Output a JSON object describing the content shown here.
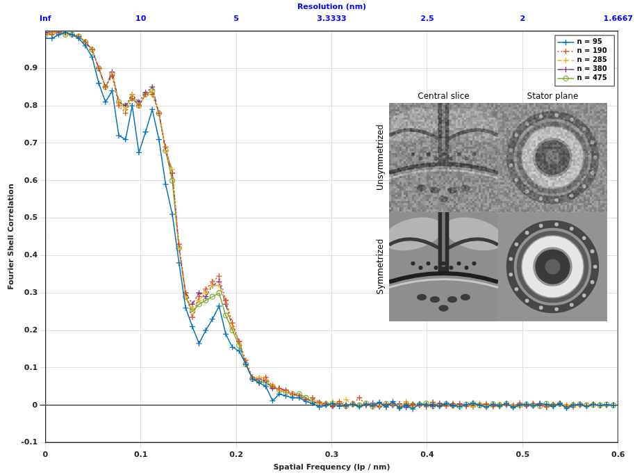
{
  "chart_data": {
    "type": "line",
    "x_label": "Spatial Frequency (lp / nm)",
    "y_label": "Fourier Shell Correlation",
    "x2_label": "Resolution (nm)",
    "xlim": [
      0,
      0.6
    ],
    "xticks": [
      0,
      0.1,
      0.2,
      0.3,
      0.4,
      0.5,
      0.6
    ],
    "x2lim": [
      0,
      0.6
    ],
    "x2ticks": [
      {
        "value": 0,
        "label": "Inf"
      },
      {
        "value": 0.1,
        "label": "10"
      },
      {
        "value": 0.2,
        "label": "5"
      },
      {
        "value": 0.3,
        "label": "3.3333"
      },
      {
        "value": 0.4,
        "label": "2.5"
      },
      {
        "value": 0.5,
        "label": "2"
      },
      {
        "value": 0.6,
        "label": "1.6667"
      }
    ],
    "ylim": [
      -0.1,
      1
    ],
    "yticks": [
      -0.1,
      0,
      0.1,
      0.2,
      0.3,
      0.4,
      0.5,
      0.6,
      0.7,
      0.8,
      0.9
    ],
    "grid": true,
    "legend": "upper right",
    "inset": {
      "columns": [
        "Central slice",
        "Stator plane"
      ],
      "rows": [
        "Unsymmetrized",
        "Symmetrized"
      ]
    },
    "x": [
      0,
      0.007,
      0.014,
      0.021,
      0.028,
      0.035,
      0.042,
      0.049,
      0.056,
      0.063,
      0.07,
      0.077,
      0.084,
      0.091,
      0.098,
      0.105,
      0.112,
      0.119,
      0.126,
      0.133,
      0.14,
      0.147,
      0.154,
      0.161,
      0.168,
      0.175,
      0.182,
      0.189,
      0.196,
      0.203,
      0.21,
      0.217,
      0.224,
      0.231,
      0.238,
      0.245,
      0.252,
      0.259,
      0.266,
      0.273,
      0.28,
      0.287,
      0.294,
      0.301,
      0.308,
      0.315,
      0.322,
      0.329,
      0.336,
      0.343,
      0.35,
      0.357,
      0.364,
      0.371,
      0.378,
      0.385,
      0.392,
      0.399,
      0.406,
      0.413,
      0.42,
      0.427,
      0.434,
      0.441,
      0.448,
      0.455,
      0.462,
      0.469,
      0.476,
      0.483,
      0.49,
      0.497,
      0.504,
      0.511,
      0.518,
      0.525,
      0.532,
      0.539,
      0.546,
      0.553,
      0.56,
      0.567,
      0.574,
      0.581,
      0.588,
      0.595
    ],
    "series": [
      {
        "name": "n = 95",
        "color": "#0072BD",
        "marker": "plus",
        "line_style": "solid",
        "values": [
          0.98,
          0.98,
          0.99,
          0.995,
          0.99,
          0.98,
          0.96,
          0.93,
          0.86,
          0.81,
          0.84,
          0.72,
          0.71,
          0.8,
          0.675,
          0.73,
          0.79,
          0.71,
          0.59,
          0.51,
          0.38,
          0.26,
          0.21,
          0.165,
          0.2,
          0.23,
          0.265,
          0.19,
          0.155,
          0.145,
          0.11,
          0.07,
          0.06,
          0.05,
          0.012,
          0.03,
          0.025,
          0.02,
          0.02,
          0.01,
          0.005,
          -0.005,
          0.0,
          0.005,
          -0.003,
          0.0,
          0.002,
          -0.004,
          0.003,
          0.0,
          0.008,
          -0.005,
          0.01,
          -0.008,
          0.0,
          -0.01,
          0.004,
          0.0,
          0.002,
          -0.003,
          0.005,
          0.0,
          -0.004,
          0.002,
          0.006,
          0.0,
          -0.005,
          0.003,
          -0.002,
          0.004,
          -0.006,
          0.0,
          0.003,
          -0.002,
          0.005,
          0.002,
          -0.003,
          0.004,
          -0.008,
          0.0,
          0.002,
          -0.003,
          0.002,
          0.0,
          0.001,
          0.0
        ]
      },
      {
        "name": "n = 190",
        "color": "#D95319",
        "marker": "plus",
        "line_style": "dotted",
        "values": [
          0.99,
          0.99,
          0.995,
          0.995,
          0.99,
          0.985,
          0.97,
          0.95,
          0.9,
          0.85,
          0.88,
          0.8,
          0.78,
          0.82,
          0.8,
          0.83,
          0.83,
          0.78,
          0.69,
          0.62,
          0.43,
          0.3,
          0.235,
          0.29,
          0.31,
          0.33,
          0.345,
          0.28,
          0.22,
          0.17,
          0.12,
          0.075,
          0.06,
          0.075,
          0.05,
          0.045,
          0.04,
          0.03,
          0.025,
          0.015,
          0.02,
          0.008,
          0.005,
          0.0,
          0.01,
          -0.003,
          0.004,
          0.02,
          0.0,
          -0.004,
          0.005,
          0.0,
          0.006,
          -0.006,
          0.004,
          0.0,
          0.002,
          -0.004,
          0.008,
          0.0,
          -0.002,
          0.004,
          0.002,
          -0.003,
          0.005,
          0.0,
          0.004,
          -0.004,
          0.002,
          0.0,
          -0.002,
          0.006,
          0.0,
          0.004,
          0.003,
          -0.005,
          0.0,
          0.004,
          -0.003,
          0.002,
          0.0,
          -0.002,
          0.003,
          0.0,
          0.002,
          0.0
        ]
      },
      {
        "name": "n = 285",
        "color": "#EDB120",
        "marker": "plus",
        "line_style": "dashed",
        "values": [
          0.99,
          0.995,
          0.995,
          0.99,
          0.99,
          0.985,
          0.97,
          0.95,
          0.9,
          0.85,
          0.885,
          0.81,
          0.79,
          0.83,
          0.8,
          0.83,
          0.84,
          0.78,
          0.68,
          0.63,
          0.42,
          0.29,
          0.26,
          0.28,
          0.3,
          0.32,
          0.32,
          0.28,
          0.21,
          0.17,
          0.11,
          0.07,
          0.075,
          0.07,
          0.055,
          0.04,
          0.035,
          0.03,
          0.025,
          0.015,
          0.01,
          0.005,
          0.0,
          0.01,
          -0.002,
          0.015,
          0.0,
          -0.003,
          0.005,
          0.002,
          0.0,
          -0.004,
          0.005,
          0.0,
          0.01,
          -0.005,
          0.003,
          0.0,
          0.008,
          0.0,
          -0.003,
          0.004,
          0.0,
          0.002,
          -0.004,
          0.005,
          0.0,
          0.003,
          -0.002,
          0.004,
          0.0,
          -0.005,
          0.002,
          0.0,
          0.004,
          -0.002,
          0.0,
          0.003,
          0.0,
          -0.003,
          0.002,
          0.0,
          0.001,
          -0.002,
          0.0,
          0.0
        ]
      },
      {
        "name": "n = 380",
        "color": "#7E2F8E",
        "marker": "plus",
        "line_style": "dashdot",
        "values": [
          0.995,
          0.995,
          0.995,
          0.995,
          0.99,
          0.985,
          0.97,
          0.95,
          0.9,
          0.85,
          0.89,
          0.81,
          0.8,
          0.83,
          0.81,
          0.835,
          0.85,
          0.78,
          0.68,
          0.62,
          0.42,
          0.3,
          0.27,
          0.3,
          0.29,
          0.32,
          0.33,
          0.27,
          0.21,
          0.17,
          0.11,
          0.07,
          0.07,
          0.065,
          0.045,
          0.045,
          0.04,
          0.03,
          0.025,
          0.015,
          0.01,
          0.005,
          0.002,
          -0.003,
          0.005,
          0.0,
          0.004,
          -0.002,
          0.0,
          0.006,
          -0.004,
          0.002,
          0.0,
          0.004,
          -0.006,
          0.003,
          0.0,
          0.002,
          -0.003,
          0.005,
          0.0,
          -0.002,
          0.004,
          0.0,
          -0.004,
          0.003,
          0.002,
          0.0,
          -0.003,
          0.005,
          0.0,
          0.002,
          -0.002,
          0.004,
          0.0,
          -0.003,
          0.002,
          0.005,
          0.0,
          -0.004,
          0.003,
          0.0,
          0.002,
          -0.001,
          0.0,
          0.0
        ]
      },
      {
        "name": "n = 475",
        "color": "#77AC30",
        "marker": "circle",
        "line_style": "solid",
        "values": [
          0.99,
          0.995,
          0.995,
          0.99,
          0.99,
          0.985,
          0.97,
          0.95,
          0.9,
          0.85,
          0.885,
          0.81,
          0.8,
          0.82,
          0.8,
          0.83,
          0.84,
          0.78,
          0.68,
          0.6,
          0.42,
          0.29,
          0.25,
          0.27,
          0.28,
          0.29,
          0.3,
          0.24,
          0.2,
          0.16,
          0.11,
          0.07,
          0.065,
          0.06,
          0.05,
          0.04,
          0.035,
          0.03,
          0.03,
          0.02,
          0.01,
          0.005,
          0.003,
          0.0,
          0.004,
          -0.002,
          0.003,
          0.0,
          0.005,
          -0.003,
          0.0,
          0.004,
          0.002,
          -0.004,
          0.003,
          0.0,
          0.002,
          0.005,
          -0.002,
          0.0,
          0.003,
          0.0,
          -0.003,
          0.002,
          0.004,
          0.0,
          -0.002,
          0.003,
          0.0,
          0.004,
          -0.003,
          0.0,
          0.002,
          0.0,
          -0.002,
          0.004,
          0.0,
          0.003,
          -0.004,
          0.0,
          0.002,
          0.0,
          0.001,
          0.0,
          0.002,
          0.0
        ]
      }
    ]
  }
}
